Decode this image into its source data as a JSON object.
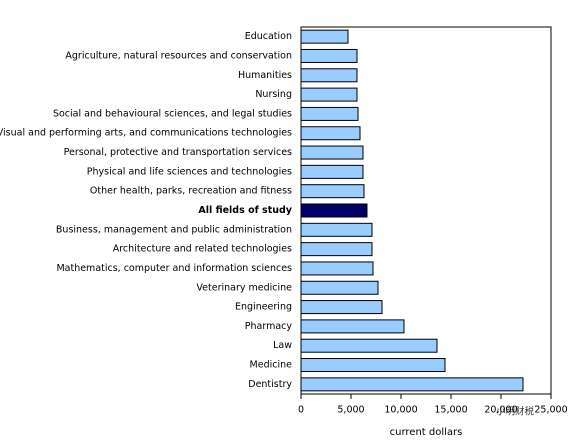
{
  "chart_data": {
    "type": "hbar",
    "categories": [
      "Education",
      "Agriculture, natural resources and conservation",
      "Humanities",
      "Nursing",
      "Social and behavioural sciences, and legal studies",
      "Visual and performing arts, and communications technologies",
      "Personal, protective and transportation services",
      "Physical and life sciences and technologies",
      "Other health, parks, recreation and fitness",
      "All fields of study",
      "Business, management and public administration",
      "Architecture and related technologies",
      "Mathematics, computer and information sciences",
      "Veterinary medicine",
      "Engineering",
      "Pharmacy",
      "Law",
      "Medicine",
      "Dentistry"
    ],
    "values": [
      4700,
      5600,
      5600,
      5600,
      5700,
      5900,
      6200,
      6200,
      6300,
      6600,
      7100,
      7100,
      7200,
      7700,
      8100,
      10300,
      13600,
      14400,
      22200
    ],
    "highlight": [
      false,
      false,
      false,
      false,
      false,
      false,
      false,
      false,
      false,
      true,
      false,
      false,
      false,
      false,
      false,
      false,
      false,
      false,
      false
    ],
    "color": "#99ccff",
    "highlight_color": "#000066",
    "xlabel": "current dollars",
    "xlim": [
      0,
      25000
    ],
    "xticks": [
      0,
      {
        "value": 5000,
        "label": "5,000"
      },
      {
        "value": 10000,
        "label": "10,000"
      },
      {
        "value": 15000,
        "label": "15,000"
      },
      {
        "value": 20000,
        "label": "20,000"
      },
      {
        "value": 25000,
        "label": "25,000"
      }
    ]
  },
  "watermark": "小明财税"
}
